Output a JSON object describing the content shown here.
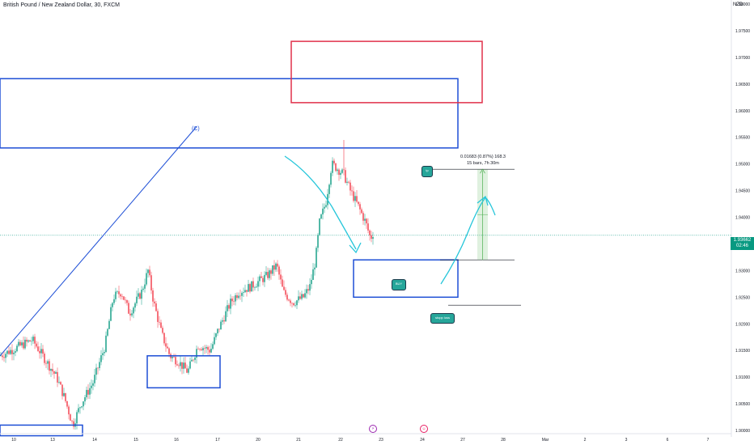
{
  "header": {
    "title": "British Pound / New Zealand Dollar, 30, FXCM",
    "currency": "NZD"
  },
  "price_tag": {
    "price": "1.93662",
    "timer": "02:46"
  },
  "measure": {
    "line1": "0.01683 (0.87%) 168.3",
    "line2": "15 bars, 7h 30m"
  },
  "notes": {
    "tp": "tp",
    "entry": "BUY",
    "stop": "stopp loss"
  },
  "wave_label": "(C)",
  "events": [
    {
      "symbol": "⚡",
      "color": "#9c27b0"
    },
    {
      "symbol": "☺",
      "color": "#e91e63"
    }
  ],
  "colors": {
    "up": "#089981",
    "down": "#f23645",
    "zone_blue": "#1e4fd6",
    "zone_red": "#e0304a",
    "teal": "#26c6da"
  },
  "chart_data": {
    "type": "candlestick",
    "title": "British Pound / New Zealand Dollar, 30, FXCM",
    "x_ticks": [
      "10",
      "13",
      "14",
      "15",
      "16",
      "17",
      "20",
      "21",
      "22",
      "23",
      "24",
      "27",
      "28",
      "Mar",
      "2",
      "3",
      "6",
      "7"
    ],
    "y_ticks": [
      "1.98000",
      "1.97500",
      "1.97000",
      "1.96500",
      "1.96000",
      "1.95500",
      "1.95000",
      "1.94500",
      "1.94000",
      "1.93500",
      "1.93000",
      "1.92500",
      "1.92000",
      "1.91500",
      "1.91000",
      "1.90500",
      "1.90000"
    ],
    "ylim": [
      1.9,
      1.98
    ],
    "current_price": 1.93662,
    "price_path": [
      [
        0,
        1.914
      ],
      [
        40,
        1.917
      ],
      [
        70,
        1.91
      ],
      [
        80,
        1.906
      ],
      [
        90,
        1.901
      ],
      [
        100,
        1.905
      ],
      [
        115,
        1.909
      ],
      [
        130,
        1.916
      ],
      [
        140,
        1.925
      ],
      [
        150,
        1.926
      ],
      [
        160,
        1.922
      ],
      [
        175,
        1.926
      ],
      [
        183,
        1.93
      ],
      [
        190,
        1.924
      ],
      [
        200,
        1.918
      ],
      [
        210,
        1.914
      ],
      [
        220,
        1.913
      ],
      [
        232,
        1.911
      ],
      [
        245,
        1.916
      ],
      [
        260,
        1.915
      ],
      [
        270,
        1.919
      ],
      [
        285,
        1.924
      ],
      [
        295,
        1.926
      ],
      [
        310,
        1.927
      ],
      [
        330,
        1.929
      ],
      [
        342,
        1.931
      ],
      [
        350,
        1.926
      ],
      [
        362,
        1.924
      ],
      [
        375,
        1.925
      ],
      [
        383,
        1.927
      ],
      [
        390,
        1.932
      ],
      [
        395,
        1.939
      ],
      [
        403,
        1.943
      ],
      [
        410,
        1.95
      ],
      [
        418,
        1.949
      ],
      [
        425,
        1.948
      ],
      [
        433,
        1.945
      ],
      [
        443,
        1.942
      ],
      [
        452,
        1.939
      ],
      [
        458,
        1.936
      ],
      [
        461,
        1.937
      ]
    ],
    "zones": [
      {
        "color": "blue",
        "price_top": 1.966,
        "price_bottom": 1.953
      },
      {
        "color": "red",
        "price_top": 1.973,
        "price_bottom": 1.9615
      },
      {
        "color": "blue",
        "price_top": 1.932,
        "price_bottom": 1.925,
        "label": "BUY"
      },
      {
        "color": "blue",
        "price_top": 1.914,
        "price_bottom": 1.908
      },
      {
        "color": "blue",
        "price_top": 1.901,
        "price_bottom": 1.899
      }
    ],
    "trendline_price": [
      1.914,
      1.957
    ],
    "levels": {
      "take_profit": 1.949,
      "entry": 1.932,
      "stop_loss": 1.9235
    },
    "grid": false
  }
}
